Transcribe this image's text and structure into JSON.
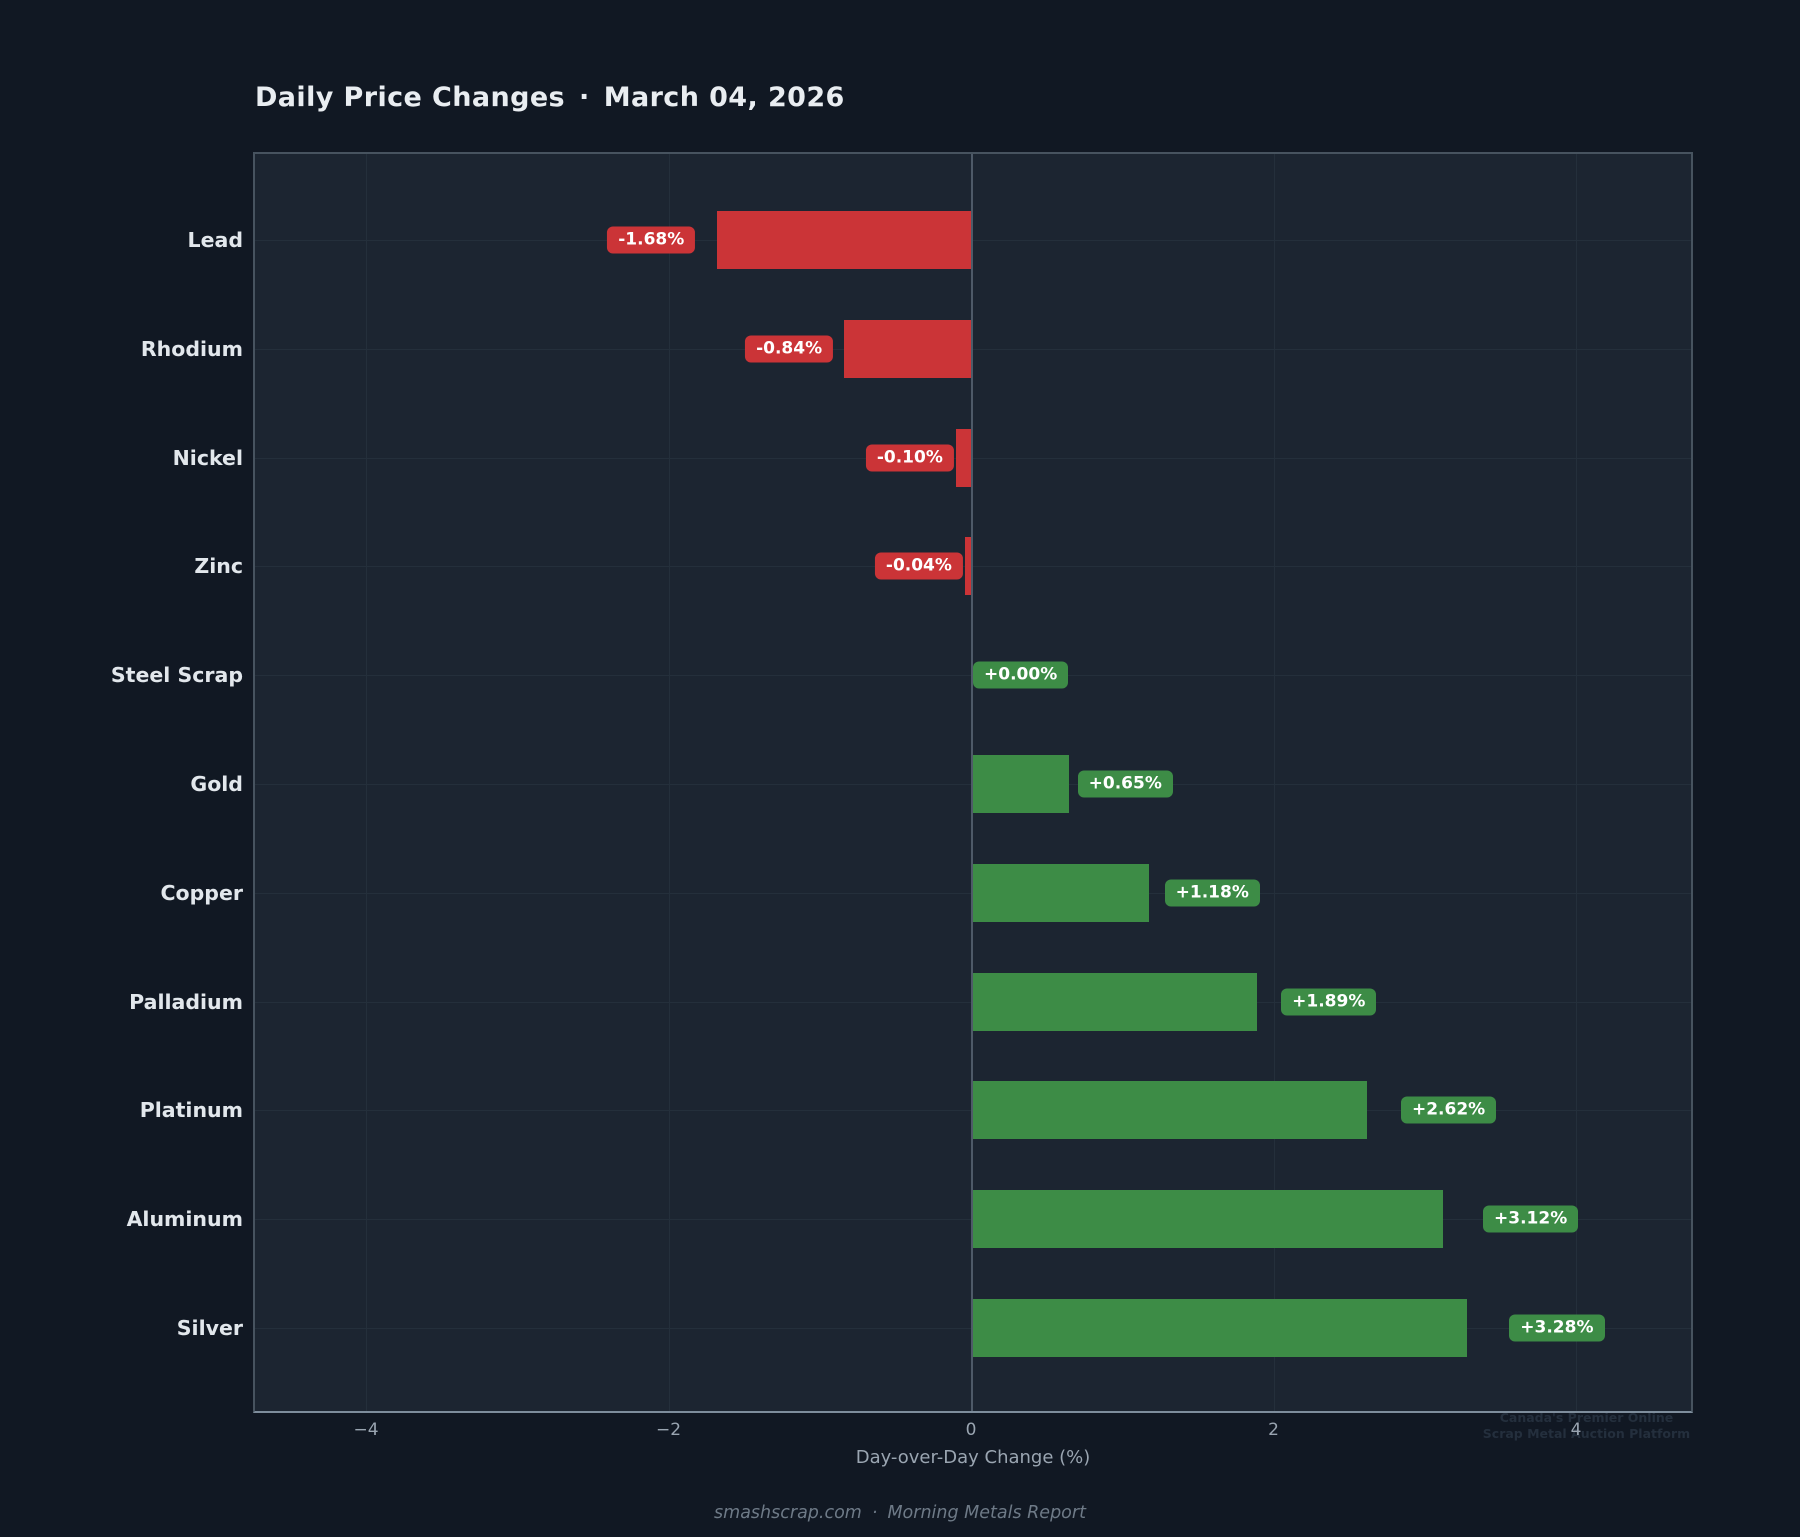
{
  "header": {
    "title": "Daily Price Changes",
    "separator": "·",
    "date": "March 04, 2026"
  },
  "chart_data": {
    "type": "bar",
    "orientation": "horizontal",
    "title": "Daily Price Changes · March 04, 2026",
    "xlabel": "Day-over-Day Change (%)",
    "categories": [
      "Lead",
      "Rhodium",
      "Nickel",
      "Zinc",
      "Steel Scrap",
      "Gold",
      "Copper",
      "Palladium",
      "Platinum",
      "Aluminum",
      "Silver"
    ],
    "values": [
      -1.68,
      -0.84,
      -0.1,
      -0.04,
      0.0,
      0.65,
      1.18,
      1.89,
      2.62,
      3.12,
      3.28
    ],
    "bar_labels": [
      "-1.68%",
      "-0.84%",
      "-0.10%",
      "-0.04%",
      "+0.00%",
      "+0.65%",
      "+1.18%",
      "+1.89%",
      "+2.62%",
      "+3.12%",
      "+3.28%"
    ],
    "xlim": [
      -4.75,
      4.77
    ],
    "xticks": [
      -4,
      -2,
      0,
      2,
      4
    ],
    "xtick_labels": [
      "−4",
      "−2",
      "0",
      "2",
      "4"
    ],
    "grid": true,
    "zero_line": true,
    "legend": "none",
    "colors": {
      "positive": "#3d8c46",
      "negative": "#cb3437",
      "background": "#111823",
      "plot_background": "#1c2531",
      "label_text": "#ffffff"
    }
  },
  "footer": {
    "source": "smashscrap.com",
    "separator": "·",
    "tagline": "Morning Metals Report"
  },
  "watermark": {
    "line1": "Canada's Premier Online",
    "line2": "Scrap Metal Auction Platform"
  }
}
